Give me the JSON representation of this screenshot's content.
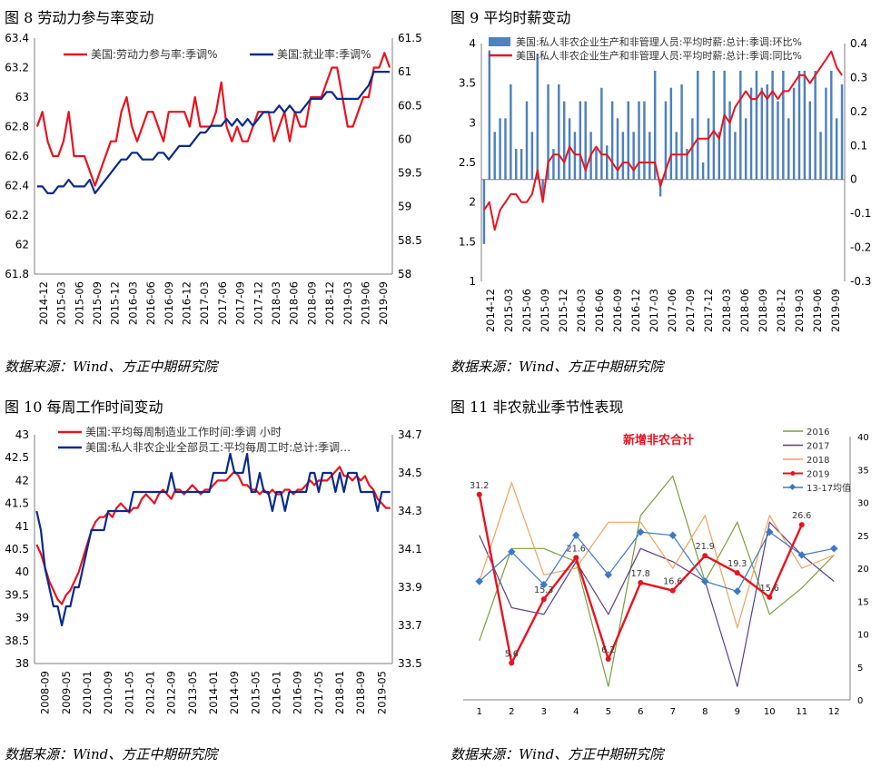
{
  "panels": [
    {
      "title": "图  8   劳动力参与率变动",
      "source": "数据来源：Wind、方正中期研究院"
    },
    {
      "title": "图  9   平均时薪变动",
      "source": "数据来源：Wind、方正中期研究院"
    },
    {
      "title": "图  10   每周工作时间变动",
      "source": "数据来源：Wind、方正中期研究院"
    },
    {
      "title": "图  11   非农就业季节性表现",
      "source": "数据来源：Wind、方正中期研究院"
    }
  ],
  "colors": {
    "red": "#e8131f",
    "navy": "#0b2a8c",
    "steel": "#4f81bd",
    "olive": "#77a03c",
    "purple": "#5b3f86",
    "orange": "#f2a35e",
    "blue": "#3c78c6",
    "axis": "#7f7f7f"
  },
  "chart_data": [
    {
      "type": "line",
      "title": "",
      "x_labels": [
        "2014-12",
        "2015-03",
        "2015-06",
        "2015-09",
        "2015-12",
        "2016-03",
        "2016-06",
        "2016-09",
        "2016-12",
        "2017-03",
        "2017-06",
        "2017-09",
        "2017-12",
        "2018-03",
        "2018-06",
        "2018-09",
        "2018-12",
        "2019-03",
        "2019-06",
        "2019-09"
      ],
      "y_left": {
        "min": 61.8,
        "max": 63.4,
        "ticks": [
          "61.8",
          "62",
          "62.2",
          "62.4",
          "62.6",
          "62.8",
          "63",
          "63.2",
          "63.4"
        ]
      },
      "y_right": {
        "min": 58,
        "max": 61.5,
        "ticks": [
          "58",
          "58.5",
          "59",
          "59.5",
          "60",
          "60.5",
          "61",
          "61.5"
        ]
      },
      "legend": "top",
      "series": [
        {
          "name": "美国:劳动力参与率:季调%",
          "axis": "left",
          "color": "#e8131f",
          "values": [
            62.8,
            62.9,
            62.7,
            62.6,
            62.6,
            62.7,
            62.9,
            62.6,
            62.6,
            62.6,
            62.5,
            62.4,
            62.5,
            62.6,
            62.7,
            62.7,
            62.9,
            63.0,
            62.8,
            62.7,
            62.8,
            62.9,
            62.9,
            62.8,
            62.7,
            62.9,
            62.9,
            62.9,
            62.9,
            62.8,
            63.0,
            62.8,
            62.8,
            62.8,
            62.9,
            63.1,
            62.8,
            62.7,
            62.8,
            62.7,
            62.7,
            62.8,
            62.9,
            62.9,
            62.9,
            62.7,
            62.8,
            62.9,
            62.7,
            62.9,
            62.8,
            62.8,
            63.0,
            63.0,
            63.0,
            63.1,
            63.2,
            63.2,
            63.0,
            62.8,
            62.8,
            62.9,
            63.0,
            63.0,
            63.2,
            63.2,
            63.3,
            63.2
          ]
        },
        {
          "name": "美国:就业率:季调%",
          "axis": "right",
          "color": "#0b2a8c",
          "values": [
            59.3,
            59.3,
            59.2,
            59.2,
            59.3,
            59.3,
            59.4,
            59.3,
            59.3,
            59.3,
            59.4,
            59.2,
            59.3,
            59.4,
            59.5,
            59.6,
            59.7,
            59.7,
            59.8,
            59.8,
            59.7,
            59.7,
            59.7,
            59.8,
            59.8,
            59.7,
            59.8,
            59.9,
            59.9,
            59.9,
            60.0,
            60.1,
            60.1,
            60.2,
            60.2,
            60.2,
            60.3,
            60.2,
            60.3,
            60.2,
            60.3,
            60.2,
            60.3,
            60.4,
            60.4,
            60.4,
            60.5,
            60.4,
            60.5,
            60.4,
            60.4,
            60.5,
            60.6,
            60.6,
            60.6,
            60.7,
            60.7,
            60.6,
            60.6,
            60.6,
            60.6,
            60.6,
            60.7,
            60.8,
            61.0,
            61.0,
            61.0,
            61.0
          ]
        }
      ]
    },
    {
      "type": "bar",
      "title": "",
      "x_labels": [
        "2014-12",
        "2015-03",
        "2015-06",
        "2015-09",
        "2015-12",
        "2016-03",
        "2016-06",
        "2016-09",
        "2016-12",
        "2017-03",
        "2017-06",
        "2017-09",
        "2017-12",
        "2018-03",
        "2018-06",
        "2018-09",
        "2018-12",
        "2019-03",
        "2019-06",
        "2019-09"
      ],
      "y_left": {
        "min": 1,
        "max": 4,
        "ticks": [
          "1",
          "1.5",
          "2",
          "2.5",
          "3",
          "3.5",
          "4"
        ]
      },
      "y_right": {
        "min": -0.3,
        "max": 0.4,
        "ticks": [
          "-0.3",
          "-0.2",
          "-0.1",
          "0",
          "0.1",
          "0.2",
          "0.3",
          "0.4"
        ]
      },
      "legend": "top",
      "series": [
        {
          "name": "美国:私人非农企业生产和非管理人员:平均时薪:总计:季调:环比%",
          "type": "bar",
          "axis": "right",
          "color": "#4f81bd",
          "values": [
            -0.19,
            0.38,
            0.14,
            0.18,
            0.18,
            0.28,
            0.09,
            0.09,
            0.23,
            0.14,
            0.37,
            -0.05,
            0.28,
            0.09,
            0.28,
            0.23,
            0.18,
            0.14,
            0.23,
            0.23,
            0.14,
            0.09,
            0.27,
            0.1,
            0.23,
            0.18,
            0.14,
            0.23,
            0.14,
            0.23,
            0.23,
            0.14,
            0.32,
            -0.05,
            0.23,
            0.27,
            0.14,
            0.28,
            0.09,
            0.18,
            0.32,
            0.05,
            0.18,
            0.32,
            0.14,
            0.32,
            0.23,
            0.14,
            0.32,
            0.18,
            0.27,
            0.32,
            0.27,
            0.28,
            0.32,
            0.23,
            0.32,
            0.18,
            0.27,
            0.32,
            0.32,
            0.23,
            0.32,
            0.14,
            0.27,
            0.32,
            0.18,
            0.28
          ]
        },
        {
          "name": "美国:私人非农企业生产和非管理人员:平均时薪:总计:季调:同比%",
          "type": "line",
          "axis": "left",
          "color": "#e8131f",
          "values": [
            1.9,
            2.0,
            1.65,
            1.9,
            2.0,
            2.1,
            2.1,
            2.0,
            2.0,
            2.1,
            2.4,
            2.0,
            2.5,
            2.6,
            2.6,
            2.5,
            2.7,
            2.6,
            2.6,
            2.4,
            2.6,
            2.7,
            2.6,
            2.6,
            2.5,
            2.4,
            2.5,
            2.5,
            2.4,
            2.5,
            2.5,
            2.5,
            2.5,
            2.2,
            2.4,
            2.6,
            2.6,
            2.6,
            2.6,
            2.7,
            2.8,
            2.8,
            2.8,
            2.9,
            2.8,
            3.1,
            3.0,
            3.2,
            3.3,
            3.4,
            3.3,
            3.3,
            3.4,
            3.3,
            3.4,
            3.3,
            3.4,
            3.4,
            3.5,
            3.6,
            3.6,
            3.5,
            3.6,
            3.7,
            3.8,
            3.9,
            3.7,
            3.6
          ]
        }
      ]
    },
    {
      "type": "line",
      "title": "",
      "x_labels": [
        "2008-09",
        "2009-05",
        "2010-01",
        "2010-09",
        "2011-05",
        "2012-01",
        "2012-09",
        "2013-05",
        "2014-01",
        "2014-09",
        "2015-05",
        "2016-01",
        "2016-09",
        "2017-05",
        "2018-01",
        "2018-09",
        "2019-05"
      ],
      "y_left": {
        "min": 38,
        "max": 43,
        "ticks": [
          "38",
          "38.5",
          "39",
          "39.5",
          "40",
          "40.5",
          "41",
          "41.5",
          "42",
          "42.5",
          "43"
        ]
      },
      "y_right": {
        "min": 33.5,
        "max": 34.7,
        "ticks": [
          "33.5",
          "33.7",
          "33.9",
          "34.1",
          "34.3",
          "34.5",
          "34.7"
        ]
      },
      "legend": "top",
      "series": [
        {
          "name": "美国:平均每周制造业工作时间:季调 小时",
          "axis": "left",
          "color": "#e8131f",
          "values": [
            40.6,
            40.4,
            40.1,
            39.8,
            39.6,
            39.4,
            39.3,
            39.5,
            39.6,
            39.8,
            40.0,
            40.3,
            40.6,
            40.9,
            41.1,
            41.2,
            41.2,
            41.3,
            41.2,
            41.4,
            41.5,
            41.4,
            41.3,
            41.4,
            41.4,
            41.6,
            41.7,
            41.6,
            41.5,
            41.7,
            41.8,
            41.7,
            41.6,
            41.8,
            41.8,
            41.7,
            41.8,
            41.9,
            41.8,
            41.7,
            41.8,
            41.8,
            41.9,
            42.0,
            42.0,
            42.0,
            42.1,
            42.2,
            42.1,
            41.9,
            41.9,
            41.8,
            41.8,
            41.7,
            41.8,
            41.7,
            41.8,
            41.7,
            41.7,
            41.8,
            41.8,
            41.7,
            41.8,
            41.8,
            41.9,
            42.0,
            41.9,
            42.0,
            42.0,
            42.0,
            42.1,
            42.2,
            42.3,
            42.1,
            42.1,
            42.0,
            42.1,
            42.0,
            42.1,
            41.9,
            41.8,
            41.6,
            41.5,
            41.4,
            41.4
          ]
        },
        {
          "name": "美国:私人非农企业全部员工:平均每周工时:总计:季调…",
          "axis": "right",
          "color": "#0b2a8c",
          "values": [
            34.3,
            34.2,
            34.0,
            33.9,
            33.8,
            33.8,
            33.7,
            33.8,
            33.8,
            33.9,
            33.9,
            34.0,
            34.1,
            34.2,
            34.2,
            34.2,
            34.2,
            34.3,
            34.3,
            34.3,
            34.3,
            34.3,
            34.3,
            34.4,
            34.4,
            34.4,
            34.4,
            34.4,
            34.4,
            34.4,
            34.4,
            34.4,
            34.5,
            34.4,
            34.4,
            34.4,
            34.4,
            34.4,
            34.4,
            34.4,
            34.4,
            34.4,
            34.5,
            34.5,
            34.5,
            34.5,
            34.6,
            34.5,
            34.5,
            34.5,
            34.6,
            34.4,
            34.4,
            34.5,
            34.4,
            34.4,
            34.3,
            34.4,
            34.4,
            34.3,
            34.4,
            34.4,
            34.4,
            34.4,
            34.4,
            34.5,
            34.5,
            34.4,
            34.5,
            34.5,
            34.5,
            34.4,
            34.5,
            34.4,
            34.5,
            34.5,
            34.5,
            34.4,
            34.4,
            34.4,
            34.4,
            34.3,
            34.4,
            34.4,
            34.4
          ]
        }
      ]
    },
    {
      "type": "line",
      "title": "新增非农合计",
      "x_labels": [
        "1",
        "2",
        "3",
        "4",
        "5",
        "6",
        "7",
        "8",
        "9",
        "10",
        "11",
        "12"
      ],
      "y_right": {
        "min": 0,
        "max": 40,
        "ticks": [
          "0",
          "5",
          "10",
          "15",
          "20",
          "25",
          "30",
          "35",
          "40"
        ]
      },
      "legend": "right",
      "series": [
        {
          "name": "2016",
          "color": "#77a03c",
          "values": [
            9,
            23,
            23,
            21,
            2,
            28,
            34,
            18,
            27,
            13,
            17,
            22
          ]
        },
        {
          "name": "2017",
          "color": "#5b3f86",
          "values": [
            25,
            14,
            13,
            21,
            13,
            23,
            21,
            18,
            2,
            27,
            22,
            18
          ]
        },
        {
          "name": "2018",
          "color": "#f2a35e",
          "values": [
            18,
            33,
            19,
            20,
            27,
            27,
            20,
            28,
            11,
            28,
            20,
            22
          ]
        },
        {
          "name": "2019",
          "color": "#e8131f",
          "values": [
            31.2,
            5.6,
            15.3,
            21.6,
            6.2,
            17.8,
            16.6,
            21.9,
            19.3,
            15.6,
            26.6,
            null
          ],
          "labels": [
            "31.2",
            "5.6",
            "15.3",
            "21.6",
            "6.2",
            "17.8",
            "16.6",
            "21.9",
            "19.3",
            "15.6",
            "26.6",
            ""
          ]
        },
        {
          "name": "13-17均值",
          "color": "#3c78c6",
          "values": [
            18,
            22.5,
            17.5,
            25,
            19,
            25.5,
            25,
            18,
            16.5,
            25.5,
            22,
            23
          ]
        }
      ]
    }
  ]
}
